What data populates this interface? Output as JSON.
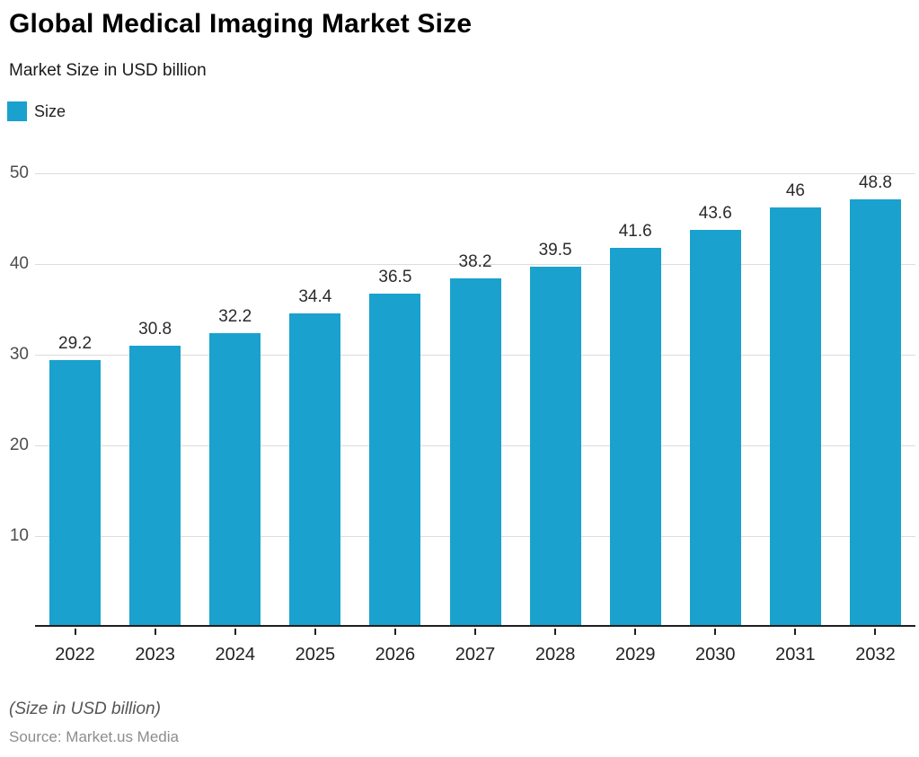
{
  "header": {
    "title": "Global Medical Imaging Market Size",
    "subtitle": "Market Size in USD billion"
  },
  "legend": {
    "label": "Size",
    "color": "#1aa1cd"
  },
  "chart_data": {
    "type": "bar",
    "title": "Global Medical Imaging Market Size",
    "subtitle": "Market Size in USD billion",
    "series_name": "Size",
    "categories": [
      "2022",
      "2023",
      "2024",
      "2025",
      "2026",
      "2027",
      "2028",
      "2029",
      "2030",
      "2031",
      "2032"
    ],
    "values": [
      29.2,
      30.8,
      32.2,
      34.4,
      36.5,
      38.2,
      39.5,
      41.6,
      43.6,
      46,
      48.8
    ],
    "value_labels": [
      "29.2",
      "30.8",
      "32.2",
      "34.4",
      "36.5",
      "38.2",
      "39.5",
      "41.6",
      "43.6",
      "46",
      "48.8"
    ],
    "xlabel": "",
    "ylabel": "",
    "ylim": [
      0,
      50
    ],
    "yticks": [
      10,
      20,
      30,
      40,
      50
    ],
    "bar_color": "#1aa1cd",
    "grid": true,
    "gridline_color": "#dcdcdc",
    "legend_position": "top-left"
  },
  "footer": {
    "note": "(Size in USD billion)",
    "source": "Source: Market.us Media"
  }
}
